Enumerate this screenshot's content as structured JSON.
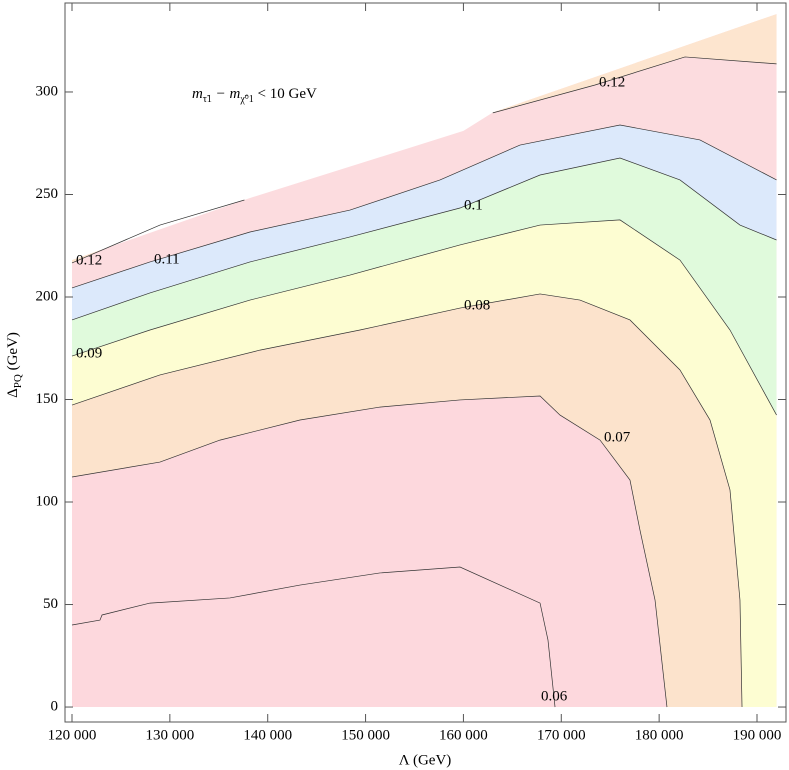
{
  "chart_data": {
    "type": "contour",
    "x_label": "Λ (GeV)",
    "y_label": {
      "main": "Δ",
      "sub": "PQ",
      "unit": " (GeV)"
    },
    "annotation": {
      "m1": "m",
      "sub1": "τ̃1",
      "mid": " − m",
      "sub2": "χ̃⁰1",
      "end": " < 10 GeV"
    },
    "xlim": [
      119285,
      192964
    ],
    "ylim": [
      -7.3,
      343.4
    ],
    "xticks": [
      {
        "value": 120000,
        "label": "120 000"
      },
      {
        "value": 130000,
        "label": "130 000"
      },
      {
        "value": 140000,
        "label": "140 000"
      },
      {
        "value": 150000,
        "label": "150 000"
      },
      {
        "value": 160000,
        "label": "160 000"
      },
      {
        "value": 170000,
        "label": "170 000"
      },
      {
        "value": 180000,
        "label": "180 000"
      },
      {
        "value": 190000,
        "label": "190 000"
      }
    ],
    "yticks": [
      0,
      50,
      100,
      150,
      200,
      250,
      300
    ],
    "domain_x": [
      120000,
      138000,
      160000,
      163000,
      192000,
      192000,
      120000
    ],
    "domain_y": [
      218,
      248,
      281,
      290,
      338,
      0,
      0
    ],
    "top_color": "#fde5cf",
    "series": [
      {
        "name": "0.12",
        "color": "#fcdcdf",
        "x": [
          120000,
          128990,
          137620,
          null,
          163000,
          173450,
          182640,
          192000
        ],
        "y": [
          216.6,
          235.1,
          247.3,
          null,
          289.8,
          303.4,
          317.1,
          313.7
        ]
      },
      {
        "name": "0.11",
        "color": "#ece0f3",
        "x": [
          120000,
          127970,
          138190,
          148410,
          157610,
          165780,
          176000,
          184170,
          192000
        ],
        "y": [
          204.4,
          217.1,
          231.7,
          242.4,
          257.1,
          274.1,
          283.9,
          276.6,
          257.1
        ]
      },
      {
        "name": "0.1",
        "color": "#dce9fb",
        "x": [
          120000,
          127970,
          138190,
          148410,
          159650,
          167830,
          176000,
          182130,
          188260,
          192000
        ],
        "y": [
          188.8,
          202,
          217.1,
          229.3,
          243.4,
          259.5,
          267.8,
          257.1,
          235.1,
          227.8
        ]
      },
      {
        "name": "0.09",
        "color": "#e0fadc",
        "x": [
          120000,
          127970,
          138190,
          148410,
          159650,
          167830,
          176000,
          182130,
          187240,
          192000
        ],
        "y": [
          171.2,
          183.9,
          198.5,
          210.7,
          225.4,
          235.1,
          237.6,
          218,
          183.9,
          142.4
        ]
      },
      {
        "name": "0.08",
        "color": "#fdfdd2",
        "x": [
          120000,
          128990,
          139210,
          149430,
          159650,
          167830,
          171910,
          177020,
          182130,
          185200,
          187240,
          188260,
          188470
        ],
        "y": [
          147.3,
          162,
          174.1,
          183.9,
          194.6,
          201.5,
          198.5,
          188.8,
          164.4,
          140,
          105.9,
          52.2,
          0
        ]
      },
      {
        "name": "0.07",
        "color": "#fce3cc",
        "x": [
          120000,
          128990,
          135120,
          143300,
          151470,
          159650,
          167830,
          169870,
          173960,
          177020,
          178040,
          179580,
          180800
        ],
        "y": [
          112.2,
          119.5,
          130.2,
          140,
          146.3,
          149.8,
          151.7,
          142.4,
          130.2,
          110.7,
          86.3,
          52.2,
          0
        ]
      },
      {
        "name": "0.06",
        "color": "#fdd8dd",
        "x": [
          120000,
          122860,
          123070,
          127970,
          136150,
          143300,
          151470,
          159650,
          167830,
          168640,
          169360
        ],
        "y": [
          40,
          42.4,
          44.9,
          50.7,
          53.2,
          59.5,
          65.4,
          68.3,
          50.7,
          32.7,
          0
        ]
      }
    ]
  }
}
